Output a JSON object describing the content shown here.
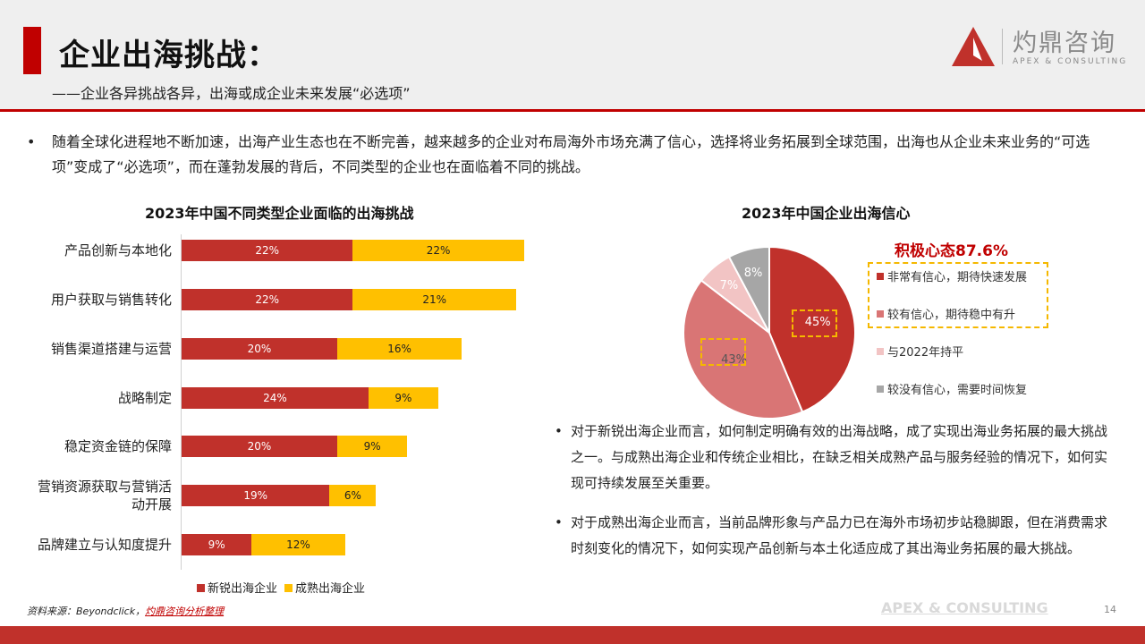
{
  "header": {
    "title": "企业出海挑战：",
    "subtitle": "——企业各异挑战各异，出海或成企业未来发展“必选项”"
  },
  "logo": {
    "cn": "灼鼎咨询",
    "en": "APEX & CONSULTING",
    "color": "#c0312b"
  },
  "intro": {
    "bullet": "•",
    "text": "随着全球化进程地不断加速，出海产业生态也在不断完善，越来越多的企业对布局海外市场充满了信心，选择将业务拓展到全球范围，出海也从企业未来业务的“可选项”变成了“必选项”，而在蓬勃发展的背后，不同类型的企业也在面临着不同的挑战。"
  },
  "chart_data": [
    {
      "type": "bar",
      "orientation": "horizontal-stacked",
      "title": "2023年中国不同类型企业面临的出海挑战",
      "categories": [
        "产品创新与本地化",
        "用户获取与销售转化",
        "销售渠道搭建与运营",
        "战略制定",
        "稳定资金链的保障",
        "营销资源获取与营销活动开展",
        "品牌建立与认知度提升"
      ],
      "category_labels": [
        [
          "产品创新与本地化"
        ],
        [
          "用户获取与销售转化"
        ],
        [
          "销售渠道搭建与运营"
        ],
        [
          "战略制定"
        ],
        [
          "稳定资金链的保障"
        ],
        [
          "营销资源获取与营销活",
          "动开展"
        ],
        [
          "品牌建立与认知度提升"
        ]
      ],
      "series": [
        {
          "name": "新锐出海企业",
          "values": [
            22,
            22,
            20,
            24,
            20,
            19,
            9
          ],
          "labels": [
            "22%",
            "22%",
            "20%",
            "24%",
            "20%",
            "19%",
            "9%"
          ],
          "color": "#c0312b"
        },
        {
          "name": "成熟出海企业",
          "values": [
            22,
            21,
            16,
            9,
            9,
            6,
            12
          ],
          "labels": [
            "22%",
            "21%",
            "16%",
            "9%",
            "9%",
            "6%",
            "12%"
          ],
          "color": "#ffc000"
        }
      ],
      "legend": "bottom"
    },
    {
      "type": "pie",
      "title": "2023年中国企业出海信心",
      "highlight": "积极心态87.6%",
      "slices": [
        {
          "label": "非常有信心，期待快速发展",
          "value": 45,
          "display": "45%",
          "color": "#c0312b"
        },
        {
          "label": "较有信心，期待稳中有升",
          "value": 43,
          "display": "43%",
          "color": "#d97575"
        },
        {
          "label": "与2022年持平",
          "value": 7,
          "display": "7%",
          "color": "#f2c4c4"
        },
        {
          "label": "较没有信心，需要时间恢复",
          "value": 8,
          "display": "8%",
          "color": "#a6a6a6"
        }
      ],
      "legend": "right"
    }
  ],
  "bullets": [
    {
      "dot": "•",
      "text": "对于新锐出海企业而言，如何制定明确有效的出海战略，成了实现出海业务拓展的最大挑战之一。与成熟出海企业和传统企业相比，在缺乏相关成熟产品与服务经验的情况下，如何实现可持续发展至关重要。"
    },
    {
      "dot": "•",
      "text": "对于成熟出海企业而言，当前品牌形象与产品力已在海外市场初步站稳脚跟，但在消费需求时刻变化的情况下，如何实现产品创新与本土化适应成了其出海业务拓展的最大挑战。"
    }
  ],
  "footer": {
    "source_prefix": "资料来源：Beyondclick，",
    "source_link": "灼鼎咨询分析整理",
    "watermark": "APEX & CONSULTING",
    "page": "14"
  }
}
